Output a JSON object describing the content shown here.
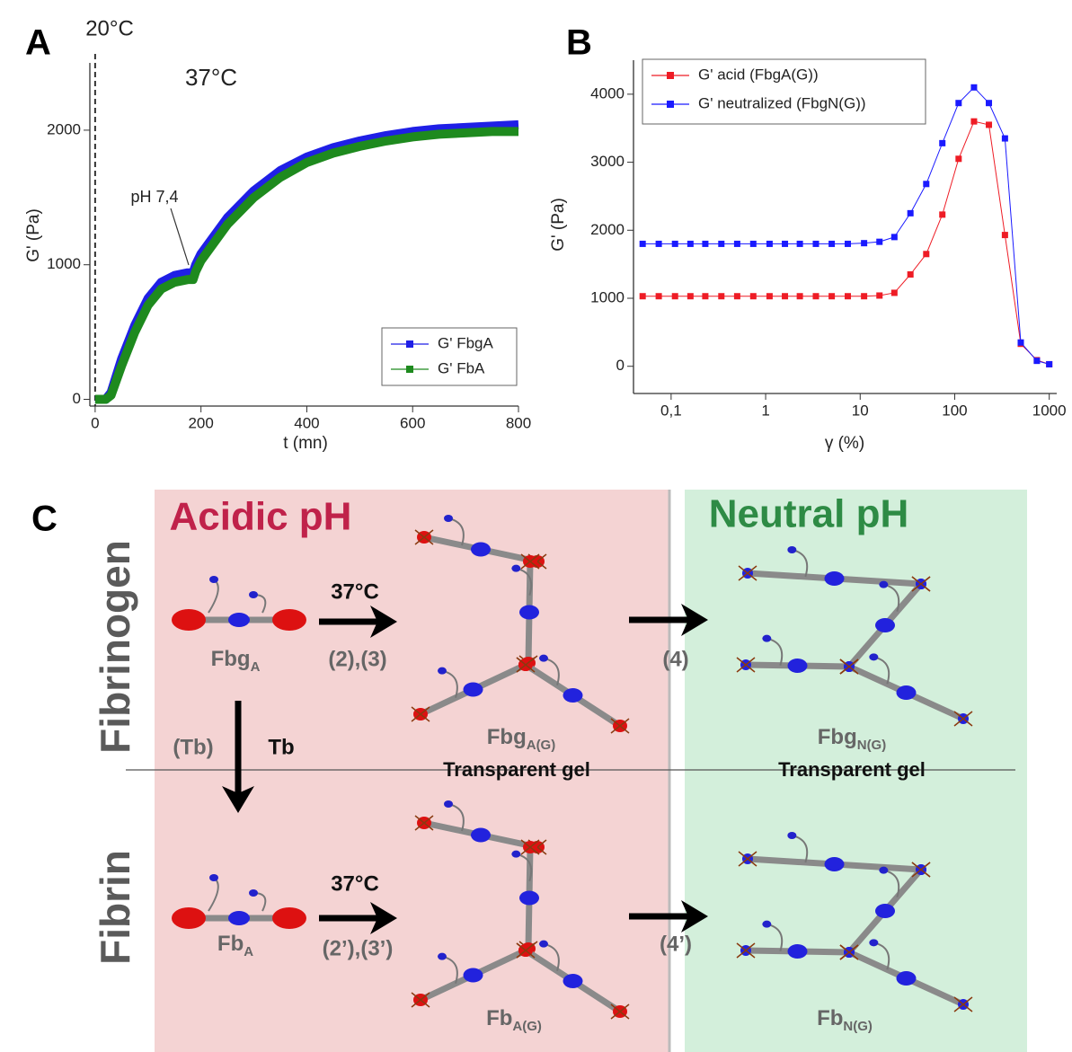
{
  "chart_data": [
    {
      "type": "line",
      "panel": "A",
      "xlabel": "t (mn)",
      "ylabel": "G' (Pa)",
      "annotations": [
        "20°C",
        "37°C",
        "pH 7,4"
      ],
      "vline": 0,
      "x": [
        0,
        20,
        30,
        50,
        75,
        100,
        125,
        150,
        175,
        185,
        190,
        200,
        250,
        300,
        350,
        400,
        450,
        500,
        550,
        600,
        650,
        700,
        750,
        800
      ],
      "series": [
        {
          "name": "G' FbgA",
          "color": "#1f1fe6",
          "values": [
            0,
            0,
            50,
            300,
            550,
            750,
            870,
            920,
            940,
            940,
            1000,
            1080,
            1350,
            1550,
            1700,
            1800,
            1870,
            1920,
            1960,
            1990,
            2010,
            2020,
            2030,
            2040
          ]
        },
        {
          "name": "G' FbA",
          "color": "#1e8a1e",
          "values": [
            0,
            0,
            30,
            250,
            500,
            700,
            820,
            870,
            890,
            890,
            950,
            1030,
            1300,
            1500,
            1650,
            1760,
            1830,
            1880,
            1920,
            1950,
            1970,
            1980,
            1990,
            1990
          ]
        }
      ],
      "xlim": [
        -10,
        800
      ],
      "ylim": [
        -50,
        2500
      ],
      "xticks": [
        0,
        200,
        400,
        600,
        800
      ],
      "yticks": [
        0,
        1000,
        2000
      ],
      "legend": "lower right"
    },
    {
      "type": "line",
      "panel": "B",
      "xlabel": "γ (%)",
      "ylabel": "G' (Pa)",
      "xscale": "log",
      "x": [
        0.05,
        0.074,
        0.11,
        0.16,
        0.23,
        0.34,
        0.5,
        0.74,
        1.1,
        1.6,
        2.3,
        3.4,
        5,
        7.4,
        11,
        16,
        23,
        34,
        50,
        74,
        110,
        160,
        230,
        340,
        500,
        740,
        1000
      ],
      "series": [
        {
          "name": "G' acid (FbgA(G))",
          "color": "#ee1c25",
          "values": [
            1030,
            1030,
            1030,
            1030,
            1030,
            1030,
            1030,
            1030,
            1030,
            1030,
            1030,
            1030,
            1030,
            1030,
            1030,
            1040,
            1080,
            1350,
            1650,
            2230,
            3050,
            3600,
            3550,
            1930,
            330,
            90,
            30
          ]
        },
        {
          "name": "G' neutralized (FbgN(G))",
          "color": "#1a1aff",
          "values": [
            1800,
            1800,
            1800,
            1800,
            1800,
            1800,
            1800,
            1800,
            1800,
            1800,
            1800,
            1800,
            1800,
            1800,
            1810,
            1830,
            1900,
            2250,
            2680,
            3280,
            3870,
            4100,
            3870,
            3350,
            350,
            80,
            30
          ]
        }
      ],
      "xlim": [
        0.04,
        1200
      ],
      "ylim": [
        -400,
        4500
      ],
      "xticks": [
        {
          "value": 0.1,
          "label": "0,1"
        },
        1,
        10,
        100,
        1000
      ],
      "yticks": [
        0,
        1000,
        2000,
        3000,
        4000
      ],
      "legend": "upper left"
    }
  ],
  "diagram": {
    "panel": "C",
    "regions": [
      "Acidic pH",
      "Neutral pH"
    ],
    "rows": [
      "Fibrinogen",
      "Fibrin"
    ],
    "species": [
      {
        "text": "Fbg",
        "sub": "A"
      },
      {
        "text": "Fbg",
        "sub": "A(G)"
      },
      {
        "text": "Fbg",
        "sub": "N(G)"
      },
      {
        "text": "Fb",
        "sub": "A"
      },
      {
        "text": "Fb",
        "sub": "A(G)"
      },
      {
        "text": "Fb",
        "sub": "N(G)"
      }
    ],
    "steps": [
      "37°C",
      "(2),(3)",
      "(4)",
      "(Tb)",
      "Tb",
      "37°C",
      "(2’),(3’)",
      "(4’)"
    ],
    "captions": [
      "Transparent gel",
      "Transparent gel"
    ]
  }
}
